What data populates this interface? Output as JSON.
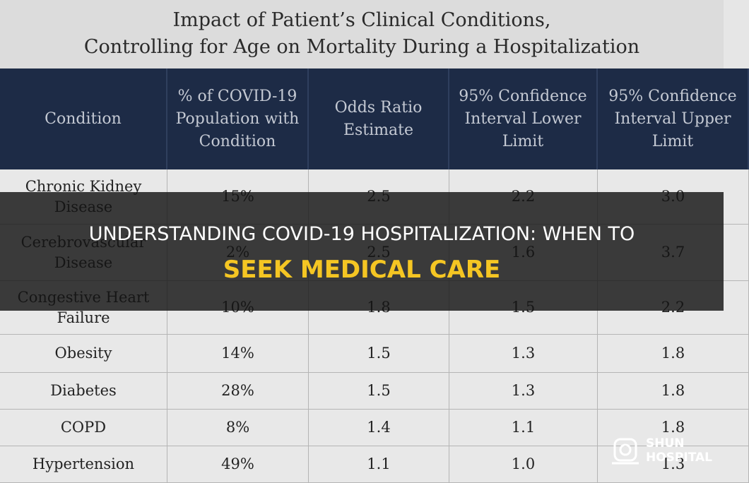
{
  "table": {
    "title_lines": [
      "Impact of Patient’s Clinical Conditions,",
      "Controlling for Age on Mortality During a Hospitalization"
    ],
    "header": [
      "Condition",
      "% of COVID-19 Population with Condition",
      "Odds Ratio Estimate",
      "95% Confidence Interval Lower Limit",
      "95% Confidence Interval Upper Limit"
    ],
    "rows": [
      [
        "Chronic Kidney Disease",
        "15%",
        "2.5",
        "2.2",
        "3.0"
      ],
      [
        "Cerebrovascular Disease",
        "2%",
        "2.5",
        "1.6",
        "3.7"
      ],
      [
        "Congestive Heart Failure",
        "10%",
        "1.8",
        "1.5",
        "2.2"
      ],
      [
        "Obesity",
        "14%",
        "1.5",
        "1.3",
        "1.8"
      ],
      [
        "Diabetes",
        "28%",
        "1.5",
        "1.3",
        "1.8"
      ],
      [
        "COPD",
        "8%",
        "1.4",
        "1.1",
        "1.8"
      ],
      [
        "Hypertension",
        "49%",
        "1.1",
        "1.0",
        "1.3"
      ]
    ]
  },
  "banner": {
    "line1": "UNDERSTANDING COVID-19 HOSPITALIZATION: WHEN TO",
    "line2": "SEEK MEDICAL CARE"
  },
  "logo": {
    "line1": "SHUN",
    "line2": "HOSPITAL"
  }
}
